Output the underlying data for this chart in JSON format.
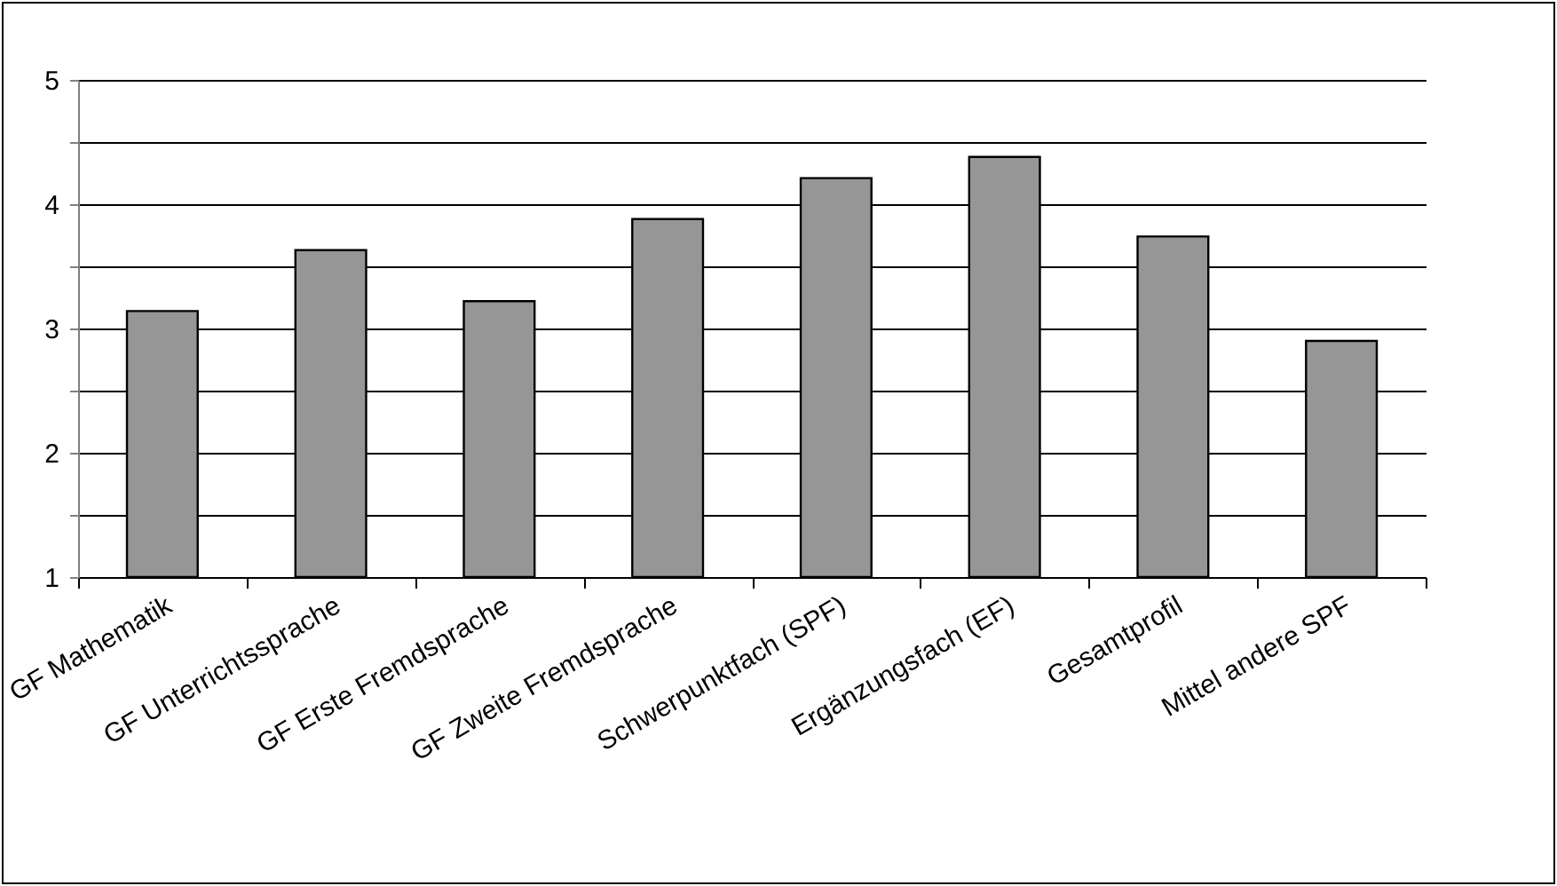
{
  "chart_data": {
    "type": "bar",
    "categories": [
      "GF Mathematik",
      "GF Unterrichtssprache",
      "GF Erste Fremdsprache",
      "GF Zweite Fremdsprache",
      "Schwerpunktfach (SPF)",
      "Ergänzungsfach (EF)",
      "Gesamtprofil",
      "Mittel andere SPF"
    ],
    "values": [
      3.14,
      3.63,
      3.22,
      3.88,
      4.21,
      4.38,
      3.74,
      2.9
    ],
    "color": "#969696",
    "ylim": [
      1,
      5
    ],
    "yticks": [
      1,
      {
        "value": 1.5,
        "label": null
      },
      2,
      {
        "value": 2.5,
        "label": null
      },
      3,
      {
        "value": 3.5,
        "label": null
      },
      4,
      {
        "value": 4.5,
        "label": null
      },
      5
    ],
    "grid": true
  }
}
